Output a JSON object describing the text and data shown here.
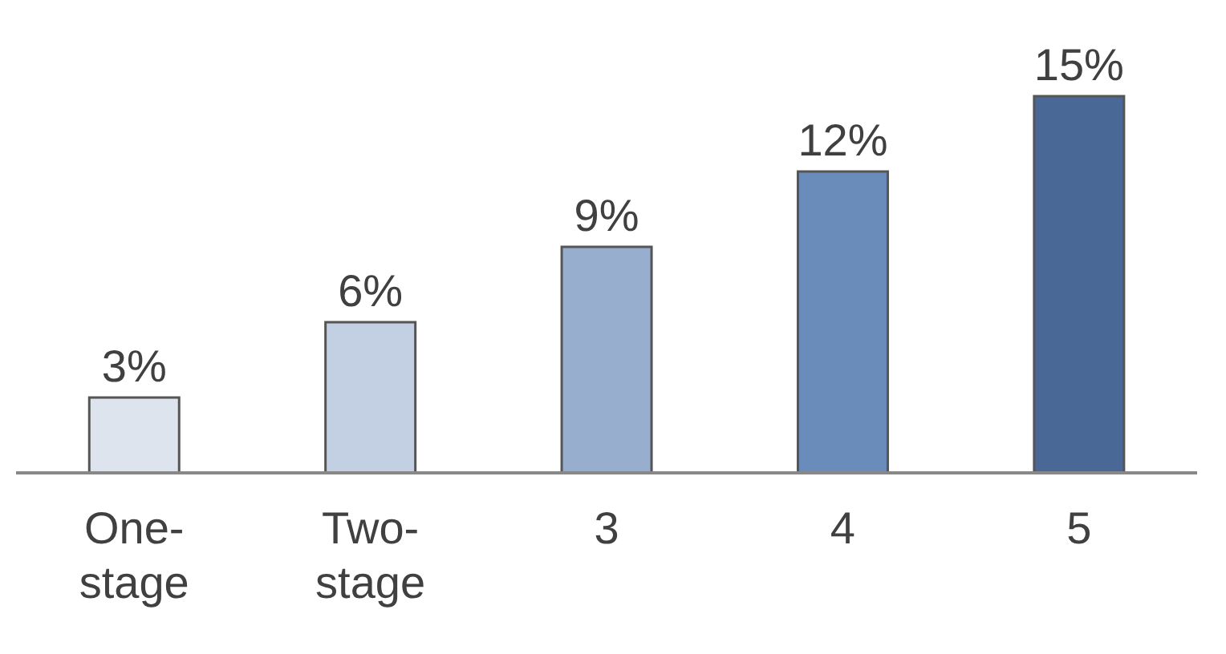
{
  "chart_data": {
    "type": "bar",
    "categories": [
      "One-stage",
      "Two-stage",
      "3",
      "4",
      "5"
    ],
    "values": [
      3,
      6,
      9,
      12,
      15
    ],
    "colors": [
      "#dde4ee",
      "#c3cfe3",
      "#98aece",
      "#6a8cbb",
      "#4a6896"
    ],
    "value_labels": [
      "3%",
      "6%",
      "9%",
      "12%",
      "15%"
    ]
  }
}
